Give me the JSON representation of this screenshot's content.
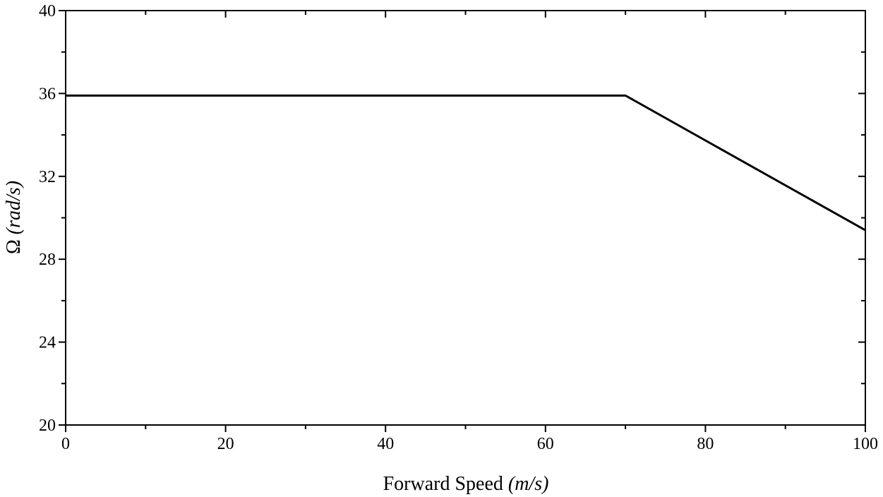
{
  "chart_data": {
    "type": "line",
    "title": "",
    "xlabel": "Forward Speed",
    "xlabel_unit": "(m/s)",
    "ylabel": "Ω",
    "ylabel_unit": "(rad/s)",
    "xlim": [
      0,
      100
    ],
    "ylim": [
      20,
      40
    ],
    "xticks": [
      0,
      20,
      40,
      60,
      80,
      100
    ],
    "yticks": [
      20,
      24,
      28,
      32,
      36,
      40
    ],
    "x_minor_step": 10,
    "y_minor_step": 2,
    "grid": false,
    "series": [
      {
        "color": "#000000",
        "x": [
          0,
          70,
          100
        ],
        "y": [
          35.9,
          35.9,
          29.4
        ]
      }
    ]
  }
}
